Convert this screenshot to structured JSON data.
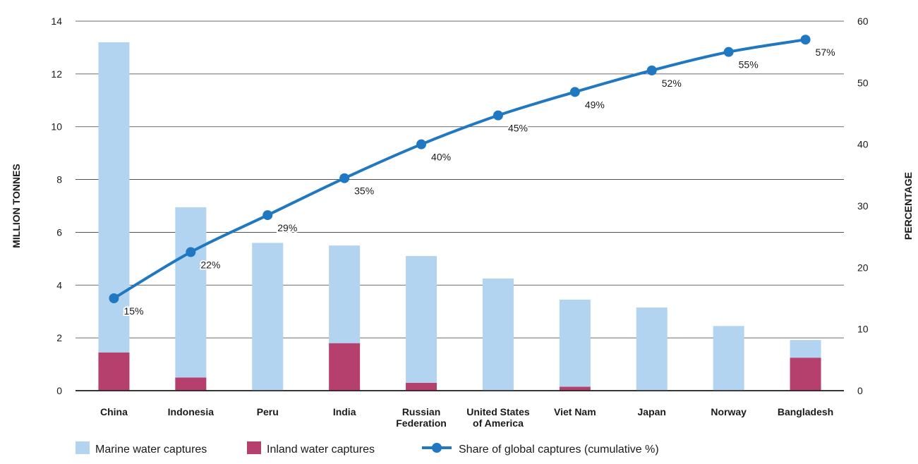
{
  "chart_data": {
    "type": "bar",
    "stacked": true,
    "categories": [
      "China",
      "Indonesia",
      "Peru",
      "India",
      "Russian Federation",
      "United States of America",
      "Viet Nam",
      "Japan",
      "Norway",
      "Bangladesh"
    ],
    "series": [
      {
        "name": "Inland water captures",
        "color": "#b5406e",
        "values": [
          1.45,
          0.5,
          0,
          1.8,
          0.3,
          0,
          0.15,
          0,
          0,
          1.25
        ]
      },
      {
        "name": "Marine water captures",
        "color": "#b3d4f0",
        "values": [
          11.75,
          6.45,
          5.6,
          3.7,
          4.8,
          4.25,
          3.3,
          3.15,
          2.45,
          0.67
        ]
      }
    ],
    "line_series": {
      "name": "Share of global captures (cumulative %)",
      "color": "#1f78c1",
      "values": [
        15,
        22.5,
        28.5,
        34.5,
        40,
        44.7,
        48.5,
        52,
        55,
        57
      ],
      "labels": [
        "15%",
        "22%",
        "29%",
        "35%",
        "40%",
        "45%",
        "49%",
        "52%",
        "55%",
        "57%"
      ]
    },
    "ylabel": "MILLION TONNES",
    "ylabel_right": "PERCENTAGE",
    "ylim": [
      0,
      14
    ],
    "yticks": [
      0,
      2,
      4,
      6,
      8,
      10,
      12,
      14
    ],
    "ylim_right": [
      0,
      60
    ],
    "yticks_right": [
      0,
      10,
      20,
      30,
      40,
      50,
      60
    ],
    "grid": true,
    "legend": [
      {
        "label": "Marine water captures",
        "type": "box",
        "color": "#b3d4f0"
      },
      {
        "label": "Inland water captures",
        "type": "box",
        "color": "#b5406e"
      },
      {
        "label": "Share of global captures (cumulative %)",
        "type": "line",
        "color": "#1f78c1"
      }
    ],
    "legend_position": "bottom-left"
  }
}
